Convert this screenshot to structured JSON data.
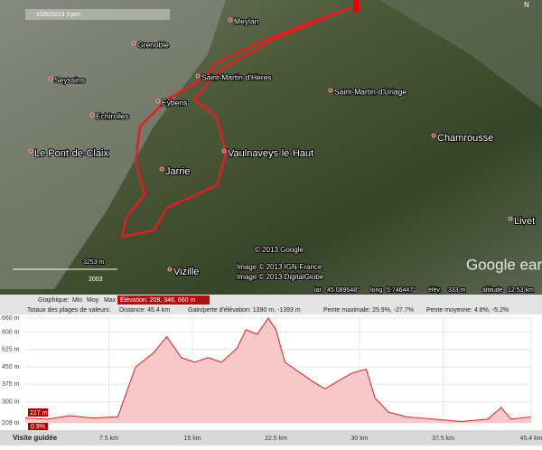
{
  "map": {
    "timestamp": "10/6/2013 3 pm",
    "places": [
      {
        "label": "Meylan",
        "size": "small"
      },
      {
        "label": "Grenoble",
        "size": "small"
      },
      {
        "label": "Seyssins",
        "size": "small"
      },
      {
        "label": "Saint-Martin-d'Hères",
        "size": "small"
      },
      {
        "label": "Saint-Martin-d'Uriage",
        "size": "small"
      },
      {
        "label": "Eybens",
        "size": "small"
      },
      {
        "label": "Echirolles",
        "size": "small"
      },
      {
        "label": "Chamrousse",
        "size": "large"
      },
      {
        "label": "Le Pont-de-Claix",
        "size": "large"
      },
      {
        "label": "Vaulnaveys-le-Haut",
        "size": "large"
      },
      {
        "label": "Jarrie",
        "size": "large"
      },
      {
        "label": "Livet",
        "size": "large"
      },
      {
        "label": "Vizille",
        "size": "large"
      }
    ],
    "copyright_google": "© 2013 Google",
    "copyright_ign": "Image © 2013 IGN-France",
    "copyright_dg": "Image © 2013 DigitalGlobe",
    "scale": "3253 m",
    "year": "2003",
    "logo": "Google earth",
    "status": {
      "lat_label": "lat",
      "lat": "45.089648°",
      "long_label": "long",
      "long": "5.746447°",
      "elev_label": "élév.",
      "elev": "333 m",
      "alt_label": "altitude",
      "alt": "12.53 km"
    }
  },
  "panel": {
    "graph_label": "Graphique:",
    "min": "Min",
    "avg": "Moy",
    "max": "Max",
    "elevation": "Élévation: 209, 346, 660 m",
    "totals": "Totaux des plages de valeurs:",
    "distance": "Distance: 45.4 km",
    "gain": "Gain/perte d'élévation: 1390 m, -1393 m",
    "max_slope": "Pente maximale: 25.9%, -27.7%",
    "avg_slope": "Pente moyenne: 4.8%, -5.2%",
    "cursor_elev": "227 m",
    "cursor_slope": "0.9%",
    "tour": "Visite guidée"
  },
  "profile": {
    "type": "area",
    "color": "#d62020",
    "x": [
      0,
      2,
      4,
      6,
      8.3,
      9.9,
      11.5,
      12.7,
      14,
      15.2,
      16.4,
      17.6,
      19,
      19.8,
      20.8,
      21.8,
      22.5,
      23.3,
      24.5,
      25.7,
      26.9,
      28.1,
      29.4,
      30.6,
      31.4,
      32.6,
      34.2,
      36.7,
      39.1,
      41.5,
      42.7,
      43.6,
      45.4
    ],
    "values": [
      230,
      225,
      240,
      230,
      235,
      450,
      510,
      580,
      490,
      470,
      490,
      470,
      530,
      610,
      590,
      660,
      610,
      470,
      430,
      390,
      355,
      390,
      425,
      440,
      315,
      255,
      235,
      225,
      215,
      225,
      275,
      225,
      235
    ],
    "xlim": [
      0,
      45.4
    ],
    "ylim": [
      209,
      660
    ],
    "xticks": [
      {
        "value": 7.5,
        "label": "7.5 km"
      },
      {
        "value": 15,
        "label": "15 km"
      },
      {
        "value": 22.5,
        "label": "22.5 km"
      },
      {
        "value": 30,
        "label": "30 km"
      },
      {
        "value": 37.5,
        "label": "37.5 km"
      },
      {
        "value": 45.4,
        "label": "45.4 km"
      }
    ],
    "yticks": [
      {
        "value": 209,
        "label": "209 m"
      },
      {
        "value": 300,
        "label": "300 m"
      },
      {
        "value": 375,
        "label": "375 m"
      },
      {
        "value": 450,
        "label": "450 m"
      },
      {
        "value": 525,
        "label": "525 m"
      },
      {
        "value": 600,
        "label": "600 m"
      },
      {
        "value": 660,
        "label": "660 m"
      }
    ]
  }
}
